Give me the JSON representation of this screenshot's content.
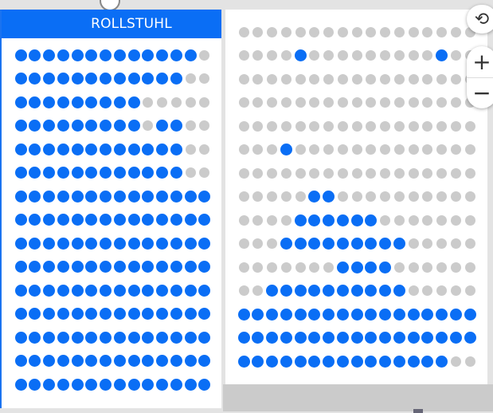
{
  "colors": {
    "available": "#0a6ef5",
    "unavailable": "#cbcbcb",
    "header": "#0a6ef5"
  },
  "left_section": {
    "title": "ROLLSTUHL",
    "rows": [
      "11111111111110",
      "11111111111100",
      "11111111100000",
      "11111111101100",
      "11111111111100",
      "11111111111100",
      "11111111111111",
      "11111111111111",
      "11111111111111",
      "11111111111111",
      "11111111111111",
      "11111111111111",
      "11111111111111",
      "11111111111111",
      "11111111111111"
    ]
  },
  "right_section": {
    "rows": [
      "00000000000000000",
      "00001000000000100",
      "00000000000000000",
      "00000000000000000",
      "00000000000000000",
      "00010000000000000",
      "00000000000000000",
      "00000110000000000",
      "00001111110000000",
      "00011111111100000",
      "00000001111000000",
      "00111111111100000",
      "11111111111111111",
      "11111111111111111",
      "11111111111111100"
    ]
  },
  "controls": {
    "rotate_icon": "rotate-icon",
    "zoom_in": "+",
    "zoom_out": "−"
  }
}
